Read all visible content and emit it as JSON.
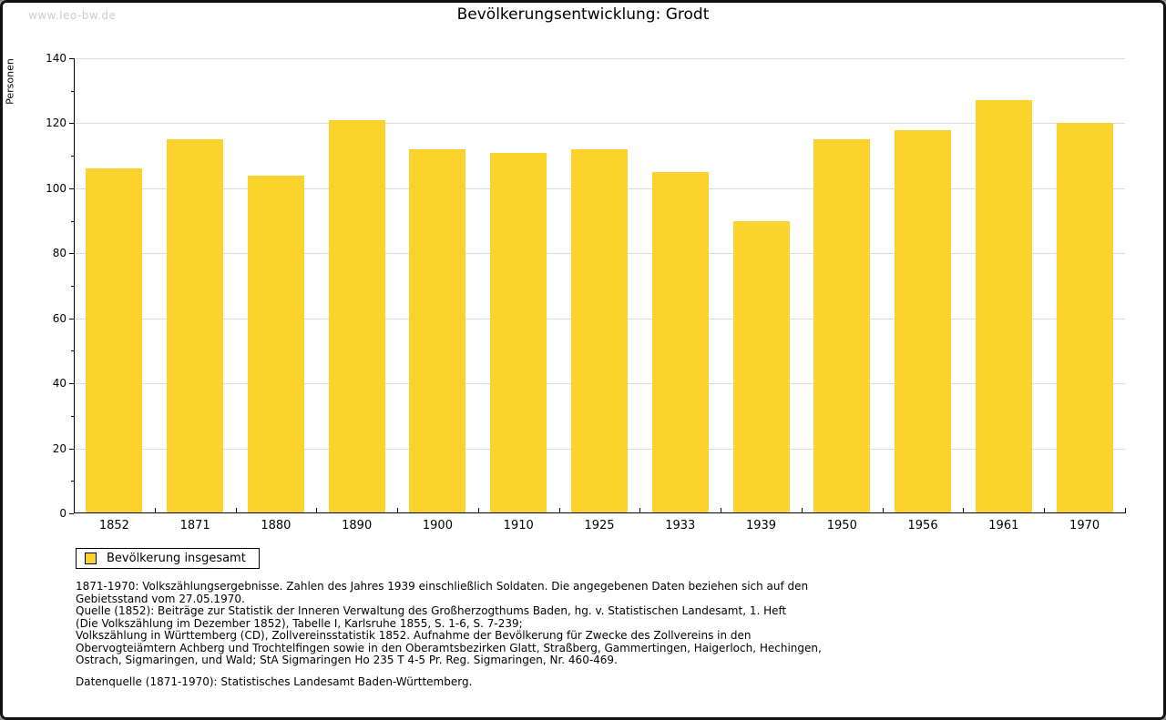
{
  "watermark": "www.leo-bw.de",
  "header": {
    "title": "Bevölkerungsentwicklung: Grodt"
  },
  "chart_data": {
    "type": "bar",
    "title": "Bevölkerungsentwicklung: Grodt",
    "xlabel": "",
    "ylabel": "Personen",
    "categories": [
      "1852",
      "1871",
      "1880",
      "1890",
      "1900",
      "1910",
      "1925",
      "1933",
      "1939",
      "1950",
      "1956",
      "1961",
      "1970"
    ],
    "series": [
      {
        "name": "Bevölkerung insgesamt",
        "values": [
          106,
          115,
          104,
          121,
          112,
          111,
          112,
          105,
          90,
          115,
          118,
          127,
          120
        ]
      }
    ],
    "ylim": [
      0,
      140
    ],
    "y_major_step": 20,
    "y_minor_step": 10,
    "grid": true,
    "legend_position": "bottom-left",
    "bar_color": "#fcd32d",
    "grid_color": "#dcdcdc"
  },
  "legend": {
    "label": "Bevölkerung insgesamt"
  },
  "footnotes": {
    "block1": "1871-1970: Volkszählungsergebnisse. Zahlen des Jahres 1939 einschließlich Soldaten. Die angegebenen Daten beziehen sich auf den\nGebietsstand vom 27.05.1970.\nQuelle (1852): Beiträge zur Statistik der Inneren Verwaltung des Großherzogthums Baden, hg. v. Statistischen Landesamt, 1. Heft\n(Die Volkszählung im Dezember 1852), Tabelle I, Karlsruhe 1855, S. 1-6, S. 7-239;\nVolkszählung in Württemberg (CD), Zollvereinsstatistik 1852. Aufnahme der Bevölkerung für Zwecke des Zollvereins in den\nObervogteiämtern Achberg und Trochtelfingen sowie in den Oberamtsbezirken Glatt, Straßberg, Gammertingen, Haigerloch, Hechingen,\nOstrach, Sigmaringen, und Wald; StA Sigmaringen Ho 235 T 4-5 Pr. Reg. Sigmaringen, Nr. 460-469.",
    "block2": "Datenquelle (1871-1970): Statistisches Landesamt Baden-Württemberg."
  }
}
